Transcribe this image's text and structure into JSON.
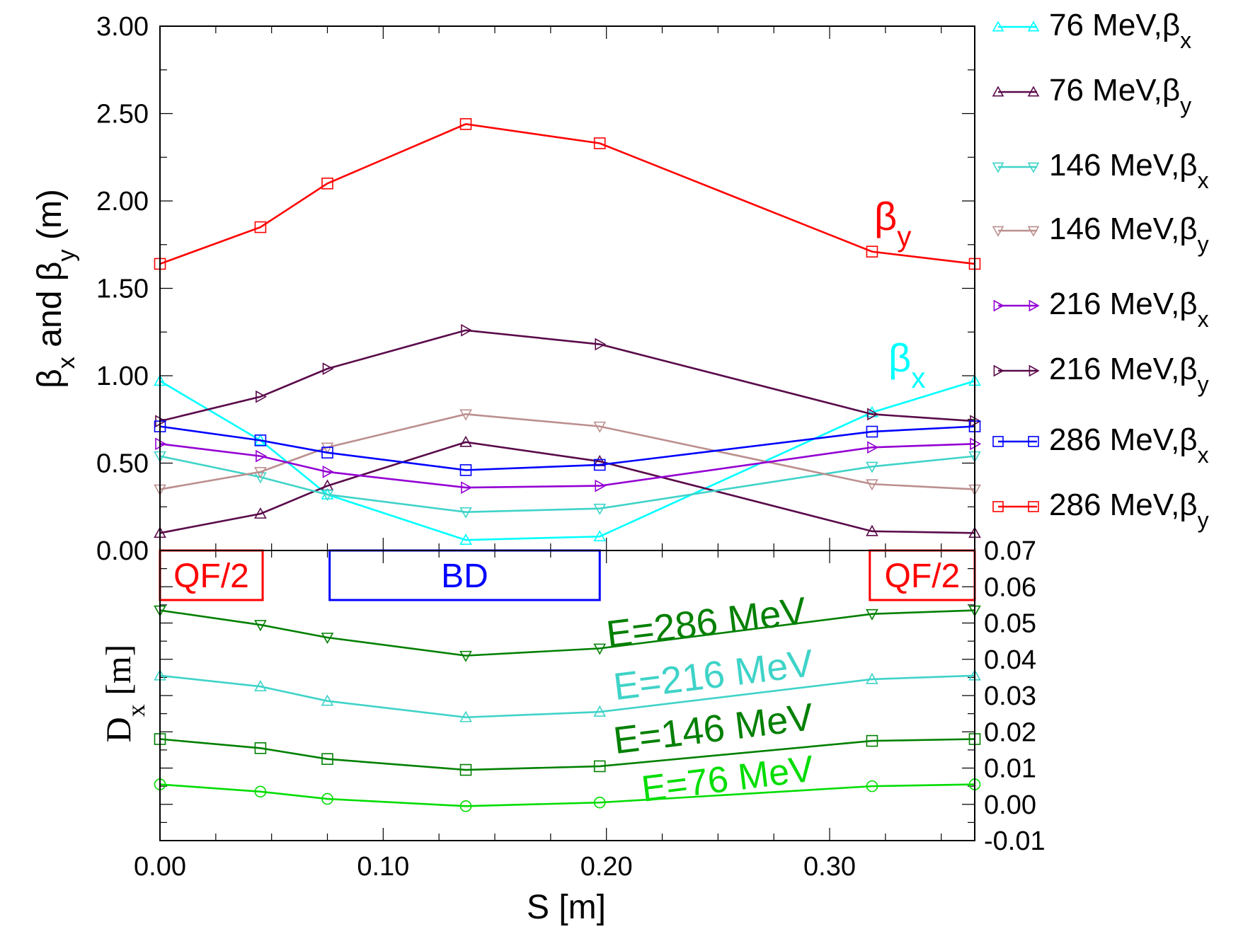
{
  "chart_data": [
    {
      "type": "line",
      "panel": "top",
      "ylabel": {
        "beta": "β",
        "sub1": "x",
        "mid": " and ",
        "sub2": "y",
        "units": " (m)"
      },
      "ylim": [
        0,
        3
      ],
      "y_ticks": [
        "0.00",
        "0.50",
        "1.00",
        "1.50",
        "2.00",
        "2.50",
        "3.00"
      ],
      "y_tick_values": [
        0,
        0.5,
        1.0,
        1.5,
        2.0,
        2.5,
        3.0
      ],
      "xlim": [
        0,
        0.365
      ],
      "series": [
        {
          "name": "76 MeV,βx",
          "legend_main": "76 MeV,β",
          "legend_sub": "x",
          "color": "#00ffff",
          "marker": "triangle-up",
          "x": [
            0,
            0.045,
            0.075,
            0.137,
            0.197,
            0.319,
            0.365
          ],
          "y": [
            0.97,
            0.63,
            0.32,
            0.06,
            0.08,
            0.79,
            0.97
          ]
        },
        {
          "name": "76 MeV,βy",
          "legend_main": "76 MeV,β",
          "legend_sub": "y",
          "color": "#5a0a4a",
          "marker": "triangle-up",
          "x": [
            0,
            0.045,
            0.075,
            0.137,
            0.197,
            0.319,
            0.365
          ],
          "y": [
            0.1,
            0.21,
            0.37,
            0.62,
            0.51,
            0.11,
            0.1
          ]
        },
        {
          "name": "146 MeV,βx",
          "legend_main": "146 MeV,β",
          "legend_sub": "x",
          "color": "#3fd3c8",
          "marker": "triangle-down",
          "x": [
            0,
            0.045,
            0.075,
            0.137,
            0.197,
            0.319,
            0.365
          ],
          "y": [
            0.54,
            0.42,
            0.32,
            0.22,
            0.24,
            0.48,
            0.54
          ]
        },
        {
          "name": "146 MeV,βy",
          "legend_main": "146 MeV,β",
          "legend_sub": "y",
          "color": "#bc8f8f",
          "marker": "triangle-down",
          "x": [
            0,
            0.045,
            0.075,
            0.137,
            0.197,
            0.319,
            0.365
          ],
          "y": [
            0.35,
            0.45,
            0.59,
            0.78,
            0.71,
            0.38,
            0.35
          ]
        },
        {
          "name": "216 MeV,βx",
          "legend_main": "216 MeV,β",
          "legend_sub": "x",
          "color": "#9400d3",
          "marker": "triangle-right",
          "x": [
            0,
            0.045,
            0.075,
            0.137,
            0.197,
            0.319,
            0.365
          ],
          "y": [
            0.61,
            0.54,
            0.45,
            0.36,
            0.37,
            0.59,
            0.61
          ]
        },
        {
          "name": "216 MeV,βy",
          "legend_main": "216 MeV,β",
          "legend_sub": "y",
          "color": "#5a0a4a",
          "marker": "triangle-right",
          "x": [
            0,
            0.045,
            0.075,
            0.137,
            0.197,
            0.319,
            0.365
          ],
          "y": [
            0.74,
            0.88,
            1.04,
            1.26,
            1.18,
            0.78,
            0.74
          ]
        },
        {
          "name": "286 MeV,βx",
          "legend_main": "286 MeV,β",
          "legend_sub": "x",
          "color": "#0000ff",
          "marker": "square",
          "x": [
            0,
            0.045,
            0.075,
            0.137,
            0.197,
            0.319,
            0.365
          ],
          "y": [
            0.71,
            0.63,
            0.56,
            0.46,
            0.49,
            0.68,
            0.71
          ]
        },
        {
          "name": "286 MeV,βy",
          "legend_main": "286 MeV,β",
          "legend_sub": "y",
          "color": "#ff0000",
          "marker": "square",
          "x": [
            0,
            0.045,
            0.075,
            0.137,
            0.197,
            0.319,
            0.365
          ],
          "y": [
            1.64,
            1.85,
            2.1,
            2.44,
            2.33,
            1.71,
            1.64
          ]
        }
      ],
      "annotations": [
        {
          "id": "beta_y",
          "main": "β",
          "sub": "y",
          "color": "#ff0000"
        },
        {
          "id": "beta_x",
          "main": "β",
          "sub": "x",
          "color": "#00ffff"
        }
      ]
    },
    {
      "type": "line",
      "panel": "bottom",
      "ylabel": {
        "main": "D",
        "sub": "x",
        "units": " [m]"
      },
      "ylim": [
        -0.01,
        0.07
      ],
      "y_ticks": [
        "-0.01",
        "0.00",
        "0.01",
        "0.02",
        "0.03",
        "0.04",
        "0.05",
        "0.06",
        "0.07"
      ],
      "y_tick_values": [
        -0.01,
        0,
        0.01,
        0.02,
        0.03,
        0.04,
        0.05,
        0.06,
        0.07
      ],
      "xlabel": "S [m]",
      "xlim": [
        0,
        0.365
      ],
      "x_ticks": [
        "0.00",
        "0.10",
        "0.20",
        "0.30"
      ],
      "x_tick_values": [
        0,
        0.1,
        0.2,
        0.3
      ],
      "series": [
        {
          "name": "E=286 MeV",
          "color": "#008000",
          "marker": "triangle-down",
          "x": [
            0,
            0.045,
            0.075,
            0.137,
            0.197,
            0.319,
            0.365
          ],
          "y": [
            0.0535,
            0.0495,
            0.046,
            0.041,
            0.043,
            0.0525,
            0.0535
          ]
        },
        {
          "name": "E=216 MeV",
          "color": "#3fd3c8",
          "marker": "triangle-up",
          "x": [
            0,
            0.045,
            0.075,
            0.137,
            0.197,
            0.319,
            0.365
          ],
          "y": [
            0.0355,
            0.0325,
            0.0285,
            0.024,
            0.0255,
            0.0345,
            0.0355
          ]
        },
        {
          "name": "E=146 MeV",
          "color": "#008000",
          "marker": "square",
          "x": [
            0,
            0.045,
            0.075,
            0.137,
            0.197,
            0.319,
            0.365
          ],
          "y": [
            0.018,
            0.0155,
            0.0125,
            0.0095,
            0.0105,
            0.0175,
            0.018
          ]
        },
        {
          "name": "E=76 MeV",
          "color": "#00dd00",
          "marker": "circle",
          "x": [
            0,
            0.045,
            0.075,
            0.137,
            0.197,
            0.319,
            0.365
          ],
          "y": [
            0.0055,
            0.0035,
            0.0015,
            -0.0005,
            0.0005,
            0.005,
            0.0055
          ]
        }
      ],
      "elements": [
        {
          "label": "QF/2",
          "x_start": 0.0,
          "x_end": 0.046,
          "color": "#ff0000"
        },
        {
          "label": "BD",
          "x_start": 0.076,
          "x_end": 0.197,
          "color": "#0000ff"
        },
        {
          "label": "QF/2",
          "x_start": 0.318,
          "x_end": 0.365,
          "color": "#ff0000"
        }
      ]
    }
  ]
}
